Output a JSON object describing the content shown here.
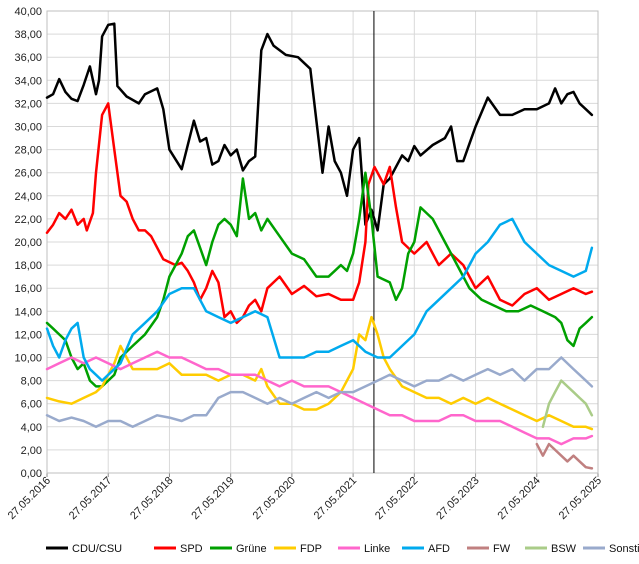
{
  "chart_data": {
    "type": "line",
    "title": "",
    "xlabel": "",
    "ylabel": "",
    "ylim": [
      0,
      40
    ],
    "y_ticks": [
      "0,00",
      "2,00",
      "4,00",
      "6,00",
      "8,00",
      "10,00",
      "12,00",
      "14,00",
      "16,00",
      "18,00",
      "20,00",
      "22,00",
      "24,00",
      "26,00",
      "28,00",
      "30,00",
      "32,00",
      "34,00",
      "36,00",
      "38,00",
      "40,00"
    ],
    "x_ticks": [
      "27.05.2016",
      "27.05.2017",
      "27.05.2018",
      "27.05.2019",
      "27.05.2020",
      "27.05.2021",
      "27.05.2022",
      "27.05.2023",
      "27.05.2024",
      "27.05.2025"
    ],
    "x_range_years": [
      2016.4,
      2025.4
    ],
    "grid": true,
    "legend_position": "bottom",
    "vertical_marker_x": 2021.74,
    "series": [
      {
        "name": "CDU/CSU",
        "color": "#000000",
        "x": [
          2016.4,
          2016.5,
          2016.6,
          2016.7,
          2016.8,
          2016.9,
          2017.0,
          2017.1,
          2017.2,
          2017.25,
          2017.3,
          2017.4,
          2017.5,
          2017.55,
          2017.7,
          2017.9,
          2018.0,
          2018.2,
          2018.3,
          2018.4,
          2018.6,
          2018.8,
          2018.9,
          2019.0,
          2019.1,
          2019.2,
          2019.3,
          2019.4,
          2019.5,
          2019.6,
          2019.7,
          2019.8,
          2019.9,
          2020.0,
          2020.1,
          2020.3,
          2020.5,
          2020.7,
          2020.9,
          2021.0,
          2021.1,
          2021.2,
          2021.3,
          2021.4,
          2021.5,
          2021.6,
          2021.7,
          2021.8,
          2021.9,
          2022.0,
          2022.2,
          2022.3,
          2022.4,
          2022.5,
          2022.7,
          2022.9,
          2023.0,
          2023.1,
          2023.2,
          2023.3,
          2023.4,
          2023.6,
          2023.8,
          2024.0,
          2024.2,
          2024.4,
          2024.6,
          2024.7,
          2024.8,
          2024.9,
          2025.0,
          2025.1,
          2025.2,
          2025.3
        ],
        "values": [
          32.5,
          32.8,
          34.1,
          33.0,
          32.4,
          32.2,
          33.6,
          35.2,
          32.8,
          34.0,
          37.8,
          38.8,
          38.9,
          33.5,
          32.6,
          32.0,
          32.8,
          33.3,
          31.5,
          28.0,
          26.3,
          30.5,
          28.7,
          29.0,
          26.7,
          27.0,
          28.4,
          27.5,
          28.0,
          26.2,
          27.0,
          27.4,
          36.6,
          38.0,
          37.0,
          36.2,
          36.0,
          35.0,
          26.0,
          30.0,
          27.0,
          26.0,
          24.0,
          28.0,
          29.0,
          21.5,
          22.8,
          21.0,
          25.0,
          25.5,
          27.5,
          27.0,
          28.3,
          27.5,
          28.4,
          29.0,
          30.0,
          27.0,
          27.0,
          28.5,
          30.0,
          32.5,
          31.0,
          31.0,
          31.5,
          31.5,
          32.0,
          33.3,
          32.0,
          32.8,
          33.0,
          32.0,
          31.5,
          31.0
        ]
      },
      {
        "name": "SPD",
        "color": "#ff0000",
        "x": [
          2016.4,
          2016.5,
          2016.6,
          2016.7,
          2016.8,
          2016.9,
          2017.0,
          2017.05,
          2017.15,
          2017.2,
          2017.3,
          2017.4,
          2017.5,
          2017.6,
          2017.7,
          2017.8,
          2017.9,
          2018.0,
          2018.1,
          2018.3,
          2018.5,
          2018.6,
          2018.7,
          2018.8,
          2018.9,
          2019.0,
          2019.1,
          2019.2,
          2019.3,
          2019.4,
          2019.5,
          2019.6,
          2019.7,
          2019.8,
          2019.9,
          2020.0,
          2020.2,
          2020.4,
          2020.6,
          2020.8,
          2021.0,
          2021.2,
          2021.4,
          2021.5,
          2021.6,
          2021.65,
          2021.75,
          2021.9,
          2022.0,
          2022.1,
          2022.2,
          2022.4,
          2022.6,
          2022.8,
          2023.0,
          2023.2,
          2023.4,
          2023.6,
          2023.8,
          2024.0,
          2024.2,
          2024.4,
          2024.6,
          2024.8,
          2025.0,
          2025.2,
          2025.3
        ],
        "values": [
          20.8,
          21.5,
          22.5,
          22.0,
          22.8,
          21.5,
          22.0,
          21.0,
          22.5,
          26.0,
          31.0,
          32.0,
          28.0,
          24.0,
          23.5,
          22.0,
          21.0,
          21.0,
          20.5,
          18.5,
          18.0,
          18.2,
          17.5,
          16.5,
          15.0,
          16.0,
          17.5,
          16.5,
          13.5,
          14.0,
          13.0,
          13.5,
          14.5,
          15.0,
          14.0,
          16.0,
          17.0,
          15.5,
          16.2,
          15.3,
          15.5,
          15.0,
          15.0,
          16.5,
          20.0,
          25.0,
          26.5,
          25.0,
          26.5,
          23.0,
          20.0,
          19.0,
          20.0,
          18.0,
          19.0,
          18.0,
          16.0,
          17.0,
          15.0,
          14.5,
          15.5,
          16.0,
          15.0,
          15.5,
          16.0,
          15.5,
          15.7
        ]
      },
      {
        "name": "Grüne",
        "color": "#00a000",
        "x": [
          2016.4,
          2016.5,
          2016.6,
          2016.7,
          2016.8,
          2016.9,
          2017.0,
          2017.1,
          2017.2,
          2017.3,
          2017.4,
          2017.5,
          2017.6,
          2017.8,
          2018.0,
          2018.2,
          2018.3,
          2018.4,
          2018.5,
          2018.6,
          2018.7,
          2018.8,
          2018.9,
          2019.0,
          2019.1,
          2019.2,
          2019.3,
          2019.4,
          2019.5,
          2019.6,
          2019.7,
          2019.8,
          2019.9,
          2020.0,
          2020.2,
          2020.4,
          2020.6,
          2020.8,
          2021.0,
          2021.1,
          2021.2,
          2021.3,
          2021.4,
          2021.5,
          2021.6,
          2021.7,
          2021.8,
          2022.0,
          2022.1,
          2022.2,
          2022.3,
          2022.4,
          2022.5,
          2022.7,
          2022.9,
          2023.1,
          2023.3,
          2023.5,
          2023.7,
          2023.9,
          2024.1,
          2024.3,
          2024.5,
          2024.7,
          2024.8,
          2024.9,
          2025.0,
          2025.1,
          2025.2,
          2025.3
        ],
        "values": [
          13.0,
          12.5,
          12.0,
          11.5,
          10.0,
          9.0,
          9.5,
          8.0,
          7.5,
          7.5,
          8.0,
          8.5,
          10.0,
          11.0,
          12.0,
          13.5,
          15.0,
          17.0,
          18.0,
          19.0,
          20.5,
          21.0,
          19.5,
          18.0,
          20.0,
          21.5,
          22.0,
          21.5,
          20.5,
          25.5,
          22.0,
          22.5,
          21.0,
          22.0,
          20.5,
          19.0,
          18.5,
          17.0,
          17.0,
          17.5,
          18.0,
          17.5,
          19.0,
          22.0,
          26.0,
          22.0,
          17.0,
          16.5,
          15.0,
          16.0,
          19.0,
          20.0,
          23.0,
          22.0,
          20.0,
          18.0,
          16.0,
          15.0,
          14.5,
          14.0,
          14.0,
          14.5,
          14.0,
          13.5,
          13.0,
          11.5,
          11.0,
          12.5,
          13.0,
          13.5
        ]
      },
      {
        "name": "FDP",
        "color": "#ffcc00",
        "x": [
          2016.4,
          2016.6,
          2016.8,
          2017.0,
          2017.2,
          2017.3,
          2017.4,
          2017.5,
          2017.6,
          2017.8,
          2018.0,
          2018.2,
          2018.4,
          2018.6,
          2018.8,
          2019.0,
          2019.2,
          2019.4,
          2019.6,
          2019.8,
          2019.9,
          2020.0,
          2020.2,
          2020.4,
          2020.6,
          2020.8,
          2021.0,
          2021.2,
          2021.4,
          2021.5,
          2021.6,
          2021.7,
          2021.8,
          2021.9,
          2022.0,
          2022.2,
          2022.4,
          2022.6,
          2022.8,
          2023.0,
          2023.2,
          2023.4,
          2023.6,
          2023.8,
          2024.0,
          2024.2,
          2024.4,
          2024.6,
          2024.8,
          2025.0,
          2025.2,
          2025.3
        ],
        "values": [
          6.5,
          6.2,
          6.0,
          6.5,
          7.0,
          7.5,
          8.5,
          9.5,
          11.0,
          9.0,
          9.0,
          9.0,
          9.5,
          8.5,
          8.5,
          8.5,
          8.0,
          8.5,
          8.5,
          8.0,
          9.0,
          7.5,
          6.0,
          6.0,
          5.5,
          5.5,
          6.0,
          7.0,
          9.0,
          12.0,
          11.5,
          13.5,
          12.0,
          10.0,
          9.0,
          7.5,
          7.0,
          6.5,
          6.5,
          6.0,
          6.5,
          6.0,
          6.5,
          6.0,
          5.5,
          5.0,
          4.5,
          5.0,
          4.5,
          4.0,
          4.0,
          3.8
        ]
      },
      {
        "name": "Linke",
        "color": "#ff66cc",
        "x": [
          2016.4,
          2016.6,
          2016.8,
          2017.0,
          2017.2,
          2017.4,
          2017.6,
          2017.8,
          2018.0,
          2018.2,
          2018.4,
          2018.6,
          2018.8,
          2019.0,
          2019.2,
          2019.4,
          2019.6,
          2019.8,
          2020.0,
          2020.2,
          2020.4,
          2020.6,
          2020.8,
          2021.0,
          2021.2,
          2021.4,
          2021.6,
          2021.8,
          2022.0,
          2022.2,
          2022.4,
          2022.6,
          2022.8,
          2023.0,
          2023.2,
          2023.4,
          2023.6,
          2023.8,
          2024.0,
          2024.2,
          2024.4,
          2024.6,
          2024.8,
          2025.0,
          2025.2,
          2025.3
        ],
        "values": [
          9.0,
          9.5,
          10.0,
          9.5,
          10.0,
          9.5,
          9.0,
          9.5,
          10.0,
          10.5,
          10.0,
          10.0,
          9.5,
          9.0,
          9.0,
          8.5,
          8.5,
          8.5,
          8.0,
          7.5,
          8.0,
          7.5,
          7.5,
          7.5,
          7.0,
          6.5,
          6.0,
          5.5,
          5.0,
          5.0,
          4.5,
          4.5,
          4.5,
          5.0,
          5.0,
          4.5,
          4.5,
          4.5,
          4.0,
          3.5,
          3.0,
          3.0,
          2.5,
          3.0,
          3.0,
          3.2
        ]
      },
      {
        "name": "AFD",
        "color": "#00aaee",
        "x": [
          2016.4,
          2016.5,
          2016.6,
          2016.7,
          2016.8,
          2016.9,
          2017.0,
          2017.1,
          2017.2,
          2017.3,
          2017.4,
          2017.5,
          2017.6,
          2017.8,
          2018.0,
          2018.2,
          2018.4,
          2018.6,
          2018.8,
          2019.0,
          2019.2,
          2019.4,
          2019.6,
          2019.8,
          2020.0,
          2020.2,
          2020.4,
          2020.6,
          2020.8,
          2021.0,
          2021.2,
          2021.4,
          2021.6,
          2021.8,
          2022.0,
          2022.2,
          2022.4,
          2022.6,
          2022.8,
          2023.0,
          2023.2,
          2023.4,
          2023.6,
          2023.8,
          2024.0,
          2024.2,
          2024.4,
          2024.6,
          2024.8,
          2025.0,
          2025.2,
          2025.3
        ],
        "values": [
          12.5,
          11.0,
          10.0,
          11.5,
          12.5,
          13.0,
          10.0,
          9.0,
          8.5,
          8.0,
          8.5,
          9.0,
          9.5,
          12.0,
          13.0,
          14.0,
          15.5,
          16.0,
          16.0,
          14.0,
          13.5,
          13.0,
          13.5,
          14.0,
          13.5,
          10.0,
          10.0,
          10.0,
          10.5,
          10.5,
          11.0,
          11.5,
          10.5,
          10.0,
          10.0,
          11.0,
          12.0,
          14.0,
          15.0,
          16.0,
          17.0,
          19.0,
          20.0,
          21.5,
          22.0,
          20.0,
          19.0,
          18.0,
          17.5,
          17.0,
          17.5,
          19.5
        ]
      },
      {
        "name": "FW",
        "color": "#c08080",
        "x": [
          2024.4,
          2024.5,
          2024.6,
          2024.7,
          2024.8,
          2024.9,
          2025.0,
          2025.1,
          2025.2,
          2025.3
        ],
        "values": [
          2.5,
          1.5,
          2.5,
          2.0,
          1.5,
          1.0,
          1.5,
          1.0,
          0.5,
          0.4
        ]
      },
      {
        "name": "BSW",
        "color": "#aacc88",
        "x": [
          2024.5,
          2024.6,
          2024.7,
          2024.8,
          2024.9,
          2025.0,
          2025.1,
          2025.2,
          2025.3
        ],
        "values": [
          4.0,
          6.0,
          7.0,
          8.0,
          7.5,
          7.0,
          6.5,
          6.0,
          5.0
        ]
      },
      {
        "name": "Sonstige",
        "color": "#99aacc",
        "x": [
          2016.4,
          2016.6,
          2016.8,
          2017.0,
          2017.2,
          2017.4,
          2017.6,
          2017.8,
          2018.0,
          2018.2,
          2018.4,
          2018.6,
          2018.8,
          2019.0,
          2019.2,
          2019.4,
          2019.6,
          2019.8,
          2020.0,
          2020.2,
          2020.4,
          2020.6,
          2020.8,
          2021.0,
          2021.2,
          2021.4,
          2021.6,
          2021.8,
          2022.0,
          2022.2,
          2022.4,
          2022.6,
          2022.8,
          2023.0,
          2023.2,
          2023.4,
          2023.6,
          2023.8,
          2024.0,
          2024.2,
          2024.4,
          2024.6,
          2024.8,
          2025.0,
          2025.2,
          2025.3
        ],
        "values": [
          5.0,
          4.5,
          4.8,
          4.5,
          4.0,
          4.5,
          4.5,
          4.0,
          4.5,
          5.0,
          4.8,
          4.5,
          5.0,
          5.0,
          6.5,
          7.0,
          7.0,
          6.5,
          6.0,
          6.5,
          6.0,
          6.5,
          7.0,
          6.5,
          7.0,
          7.0,
          7.5,
          8.0,
          8.5,
          8.0,
          7.5,
          8.0,
          8.0,
          8.5,
          8.0,
          8.5,
          9.0,
          8.5,
          9.0,
          8.0,
          9.0,
          9.0,
          10.0,
          9.0,
          8.0,
          7.5
        ]
      }
    ]
  }
}
